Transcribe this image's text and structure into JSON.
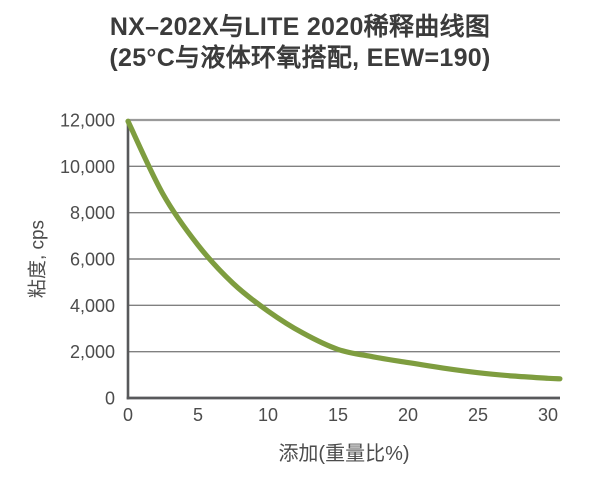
{
  "chart_data": {
    "type": "line",
    "title": "NX–202X与LITE 2020稀释曲线图",
    "subtitle": "(25°C与液体环氧搭配, EEW=190)",
    "xlabel": "添加(重量比%)",
    "ylabel": "粘度, cps",
    "xlim": [
      0,
      30.85
    ],
    "ylim": [
      0,
      12000
    ],
    "x_ticks": [
      0,
      5,
      10,
      15,
      20,
      25,
      30
    ],
    "x_tick_labels": [
      "0",
      "5",
      "10",
      "15",
      "20",
      "25",
      "30"
    ],
    "y_ticks": [
      0,
      2000,
      4000,
      6000,
      8000,
      10000,
      12000
    ],
    "y_tick_labels": [
      "0",
      "2,000",
      "4,000",
      "6,000",
      "8,000",
      "10,000",
      "12,000"
    ],
    "grid": "horizontal",
    "legend_position": "none",
    "series": [
      {
        "color": "#7e9d3f",
        "x": [
          0,
          2.5,
          5,
          7.5,
          10,
          12.5,
          15,
          17.5,
          20,
          22.5,
          25,
          27.5,
          30,
          30.85
        ],
        "y": [
          11950,
          8800,
          6600,
          4950,
          3750,
          2800,
          2100,
          1780,
          1530,
          1290,
          1090,
          950,
          850,
          830
        ]
      }
    ]
  },
  "colors": {
    "background": "#ffffff",
    "title_text": "#3b3b3b",
    "axis_line": "#58595b",
    "gridline": "#808080",
    "top_gridline": "#9a9a9a",
    "tick_label": "#4c4c4c",
    "curve": "#7e9d3f"
  }
}
